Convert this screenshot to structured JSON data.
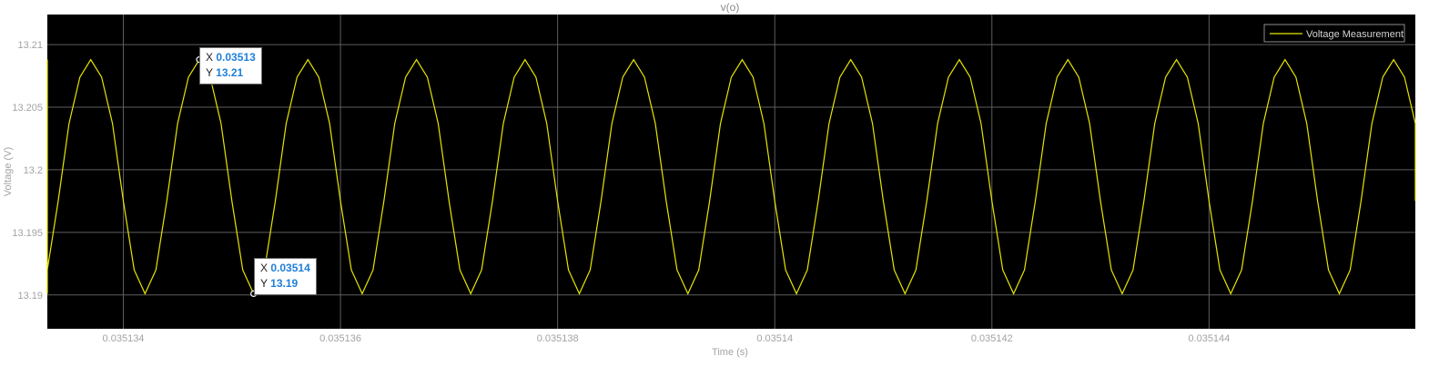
{
  "colors": {
    "background": "#000000",
    "grid": "#5e5e5e",
    "series": "#e6e600",
    "axis_text": "#a3a3a3",
    "tip_value": "#1f7fd8"
  },
  "chart_data": {
    "type": "line",
    "title": "v(o)",
    "xlabel": "Time (s)",
    "ylabel": "Voltage (V)",
    "xlim": [
      0.0351333,
      0.0351459
    ],
    "ylim": [
      13.1873,
      13.2124
    ],
    "xticks": [
      0.035134,
      0.035136,
      0.035138,
      0.03514,
      0.035142,
      0.035144
    ],
    "xtick_labels": [
      "0.035134",
      "0.035136",
      "0.035138",
      "0.03514",
      "0.035142",
      "0.035144"
    ],
    "yticks": [
      13.19,
      13.195,
      13.2,
      13.205,
      13.21
    ],
    "ytick_labels": [
      "13.19",
      "13.195",
      "13.2",
      "13.205",
      "13.21"
    ],
    "grid": true,
    "legend_position": "top-right",
    "series": [
      {
        "name": "Voltage Measurement",
        "period": 1e-06,
        "wave_shape": [
          13.1901,
          13.192,
          13.1975,
          13.2037,
          13.2074,
          13.2088,
          13.2074,
          13.2037,
          13.1975,
          13.192
        ],
        "first_peak_x": 0.0351337
      }
    ],
    "datatips": [
      {
        "x_label": "X",
        "x_value": "0.03513",
        "y_label": "Y",
        "y_value": "13.21",
        "x": 0.0351347,
        "y": 13.2088
      },
      {
        "x_label": "X",
        "x_value": "0.03514",
        "y_label": "Y",
        "y_value": "13.19",
        "x": 0.0351352,
        "y": 13.1901
      }
    ]
  }
}
